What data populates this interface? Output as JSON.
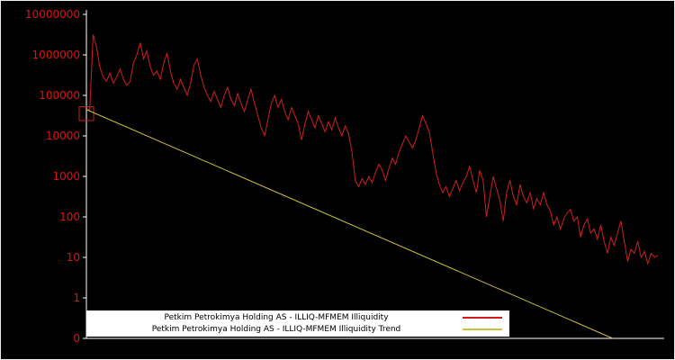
{
  "chart_data": {
    "type": "line",
    "title": "",
    "xlabel": "",
    "ylabel": "",
    "y_scale": "log",
    "grid": false,
    "legend_position": "bottom-center",
    "background": "#000000",
    "axis_color": "#ffffff",
    "tick_label_color": "#e01010",
    "y_ticks": [
      {
        "label": "10000000",
        "log": 7
      },
      {
        "label": "1000000",
        "log": 6
      },
      {
        "label": "100000",
        "log": 5
      },
      {
        "label": "10000",
        "log": 4
      },
      {
        "label": "1000",
        "log": 3
      },
      {
        "label": "100",
        "log": 2
      },
      {
        "label": "10",
        "log": 1
      },
      {
        "label": "1",
        "log": 0
      },
      {
        "label": "0",
        "log": -1
      }
    ],
    "series": [
      {
        "name": "Petkim Petrokimya Holding AS - ILLIQ-MFMEM Illiquidity",
        "color": "#d01f1f",
        "kind": "jagged",
        "log10_values": [
          4.65,
          4.65,
          6.5,
          6.2,
          5.7,
          5.45,
          5.35,
          5.55,
          5.3,
          5.45,
          5.65,
          5.4,
          5.25,
          5.35,
          5.8,
          6.0,
          6.3,
          5.9,
          6.1,
          5.7,
          5.5,
          5.6,
          5.4,
          5.8,
          6.05,
          5.6,
          5.3,
          5.15,
          5.4,
          5.2,
          5.0,
          5.3,
          5.75,
          5.9,
          5.5,
          5.2,
          5.0,
          4.85,
          5.1,
          4.9,
          4.7,
          5.0,
          5.2,
          4.9,
          4.75,
          5.05,
          4.8,
          4.6,
          4.9,
          5.15,
          4.8,
          4.5,
          4.2,
          4.0,
          4.4,
          4.8,
          5.0,
          4.7,
          4.9,
          4.6,
          4.4,
          4.7,
          4.5,
          4.3,
          3.9,
          4.3,
          4.6,
          4.4,
          4.2,
          4.5,
          4.3,
          4.1,
          4.35,
          4.15,
          4.45,
          4.2,
          4.0,
          4.25,
          4.05,
          3.6,
          2.9,
          2.75,
          2.95,
          2.8,
          3.0,
          2.85,
          3.1,
          3.3,
          3.15,
          2.9,
          3.2,
          3.45,
          3.3,
          3.6,
          3.8,
          4.0,
          3.85,
          3.7,
          3.9,
          4.2,
          4.5,
          4.3,
          4.1,
          3.6,
          3.1,
          2.8,
          2.6,
          2.75,
          2.5,
          2.7,
          2.9,
          2.65,
          2.85,
          3.0,
          3.25,
          2.9,
          2.6,
          3.15,
          2.9,
          2.0,
          2.5,
          3.0,
          2.7,
          2.4,
          1.9,
          2.6,
          2.9,
          2.5,
          2.3,
          2.8,
          2.5,
          2.35,
          2.6,
          2.2,
          2.45,
          2.3,
          2.6,
          2.3,
          2.15,
          1.8,
          2.0,
          1.7,
          1.95,
          2.1,
          2.18,
          1.9,
          2.0,
          1.5,
          1.8,
          1.95,
          1.6,
          1.7,
          1.45,
          1.8,
          1.4,
          1.1,
          1.5,
          1.3,
          1.6,
          1.9,
          1.4,
          0.9,
          1.2,
          1.1,
          1.4,
          1.0,
          1.15,
          0.85,
          1.1,
          1.0,
          1.05
        ]
      },
      {
        "name": "Petkim Petrokimya Holding AS - ILLIQ-MFMEM Illiquidity Trend",
        "color": "#cdc339",
        "kind": "trend",
        "log10_start": 4.65,
        "log10_end": -1,
        "x_end_fraction": 0.921
      }
    ]
  }
}
